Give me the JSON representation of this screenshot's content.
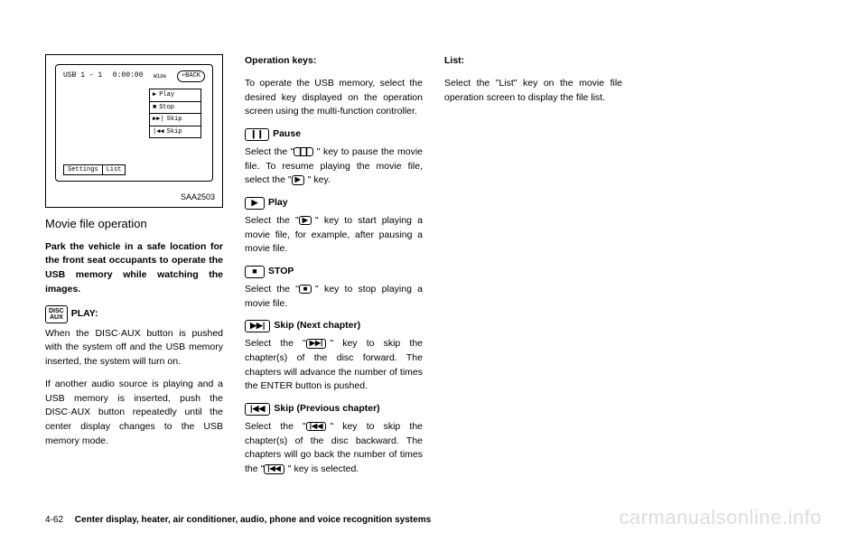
{
  "figure": {
    "top_left": "USB   1 - 1",
    "time": "0:00:00",
    "wide": "Wide",
    "back": "↶BACK",
    "menu": [
      {
        "icon": "▶",
        "label": "Play"
      },
      {
        "icon": "■",
        "label": "Stop"
      },
      {
        "icon": "▶▶|",
        "label": "Skip"
      },
      {
        "icon": "|◀◀",
        "label": "Skip"
      }
    ],
    "bottom": [
      "Settings",
      "List"
    ],
    "caption": "SAA2503"
  },
  "col1": {
    "subhead": "Movie file operation",
    "warning": "Park the vehicle in a safe location for the front seat occupants to operate the USB memory while watching the images.",
    "play_icon": "DISC\nAUX",
    "play_label": "PLAY:",
    "p1": "When the DISC·AUX button is pushed with the system off and the USB memory inserted, the system will turn on.",
    "p2": "If another audio source is playing and a USB memory is inserted, push the DISC·AUX button repeatedly until the center display changes to the USB memory mode."
  },
  "col2": {
    "h1": "Operation keys:",
    "p1": "To operate the USB memory, select the desired key displayed on the operation screen using the multi-function controller.",
    "pause": {
      "icon": "❙❙",
      "label": "Pause",
      "text_a": "Select the \"",
      "text_b": "\" key to pause the movie file. To resume playing the movie file, select the \"",
      "text_c": "\" key."
    },
    "play": {
      "icon": "▶",
      "label": "Play",
      "text_a": "Select the \"",
      "text_b": "\" key to start playing a movie file, for example, after pausing a movie file."
    },
    "stop": {
      "icon": "■",
      "label": "STOP",
      "text_a": "Select the \"",
      "text_b": "\" key to stop playing a movie file."
    },
    "skipnext": {
      "icon": "▶▶|",
      "label": "Skip (Next chapter)",
      "text_a": "Select the \"",
      "text_b": "\" key to skip the chapter(s) of the disc forward. The chapters will advance the number of times the ENTER button is pushed."
    },
    "skipprev": {
      "icon": "|◀◀",
      "label": "Skip (Previous chapter)",
      "text_a": "Select the \"",
      "text_b": "\" key to skip the chapter(s) of the disc backward. The chapters will go back the number of times the \"",
      "text_c": "\" key is selected."
    }
  },
  "col3": {
    "h1": "List:",
    "p1": "Select the \"List\" key on the movie file operation screen to display the file list."
  },
  "footer": {
    "page": "4-62",
    "section": "Center display, heater, air conditioner, audio, phone and voice recognition systems"
  },
  "watermark": "carmanualsonline.info"
}
